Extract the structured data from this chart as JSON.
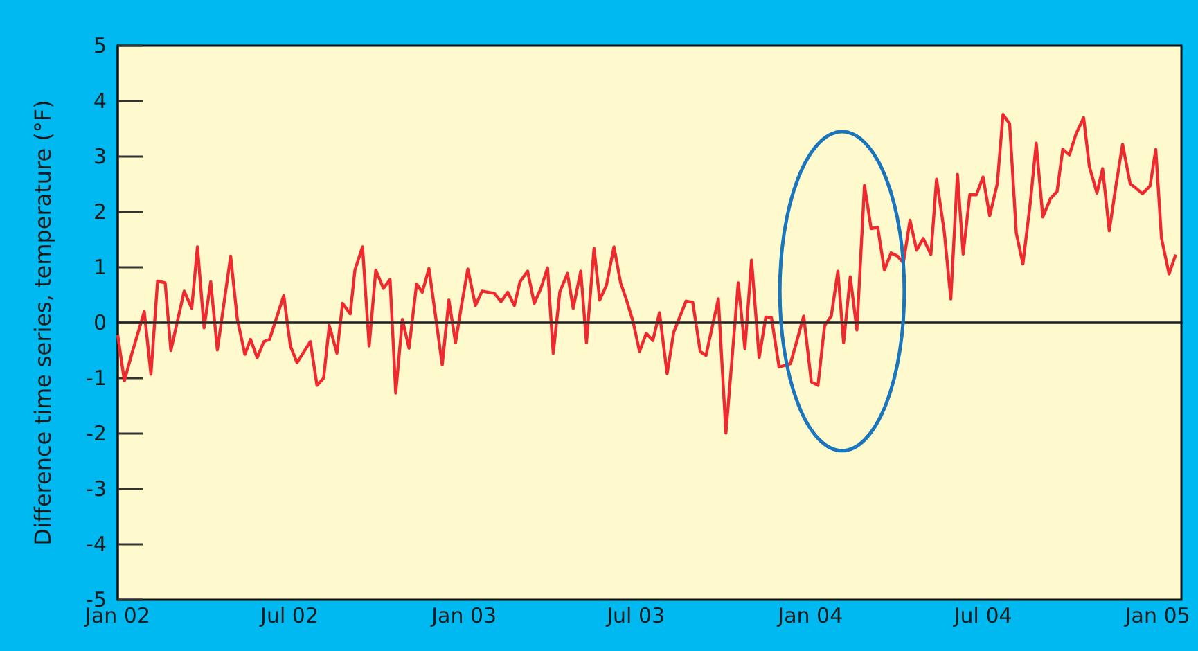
{
  "chart_data": {
    "type": "line",
    "ylabel": "Difference time series, temperature (°F)",
    "xlim": [
      "2002-01-01",
      "2005-01-26"
    ],
    "ylim": [
      -5,
      5
    ],
    "xticks": [
      {
        "value": "2002-01",
        "label": "Jan 02"
      },
      {
        "value": "2002-07",
        "label": "Jul 02"
      },
      {
        "value": "2003-01",
        "label": "Jan 03"
      },
      {
        "value": "2003-07",
        "label": "Jul 03"
      },
      {
        "value": "2004-01",
        "label": "Jan 04"
      },
      {
        "value": "2004-07",
        "label": "Jul 04"
      },
      {
        "value": "2005-01",
        "label": "Jan 05"
      }
    ],
    "yticks": [
      -5,
      -4,
      -3,
      -2,
      -1,
      0,
      1,
      2,
      3,
      4,
      5
    ],
    "grid": false,
    "marker": "none",
    "line_style": "solid",
    "ref_lines": [
      {
        "axis": "y",
        "value": 0,
        "color": "#222222"
      }
    ],
    "series": [
      {
        "color": "#ee2a2f",
        "x": [
          "2002-01-01",
          "2002-01-08",
          "2002-01-16",
          "2002-01-29",
          "2002-02-05",
          "2002-02-12",
          "2002-02-20",
          "2002-02-26",
          "2002-03-12",
          "2002-03-20",
          "2002-03-26",
          "2002-04-02",
          "2002-04-09",
          "2002-04-16",
          "2002-04-30",
          "2002-05-07",
          "2002-05-15",
          "2002-05-21",
          "2002-05-28",
          "2002-06-04",
          "2002-06-10",
          "2002-06-25",
          "2002-07-02",
          "2002-07-09",
          "2002-07-23",
          "2002-07-30",
          "2002-08-06",
          "2002-08-12",
          "2002-08-20",
          "2002-08-26",
          "2002-09-03",
          "2002-09-08",
          "2002-09-16",
          "2002-09-23",
          "2002-09-30",
          "2002-10-08",
          "2002-10-15",
          "2002-10-21",
          "2002-10-28",
          "2002-11-04",
          "2002-11-12",
          "2002-11-18",
          "2002-11-25",
          "2002-12-01",
          "2002-12-09",
          "2002-12-16",
          "2002-12-23",
          "2002-12-29",
          "2003-01-05",
          "2003-01-13",
          "2003-01-20",
          "2003-02-02",
          "2003-02-09",
          "2003-02-16",
          "2003-02-23",
          "2003-03-01",
          "2003-03-09",
          "2003-03-16",
          "2003-03-23",
          "2003-03-30",
          "2003-04-05",
          "2003-04-12",
          "2003-04-20",
          "2003-04-26",
          "2003-05-04",
          "2003-05-10",
          "2003-05-18",
          "2003-05-24",
          "2003-05-31",
          "2003-06-08",
          "2003-06-15",
          "2003-06-21",
          "2003-06-28",
          "2003-07-05",
          "2003-07-12",
          "2003-07-19",
          "2003-07-26",
          "2003-08-03",
          "2003-08-10",
          "2003-08-23",
          "2003-08-30",
          "2003-09-07",
          "2003-09-13",
          "2003-09-26",
          "2003-10-04",
          "2003-10-17",
          "2003-10-24",
          "2003-10-31",
          "2003-11-08",
          "2003-11-15",
          "2003-11-21",
          "2003-11-29",
          "2003-12-11",
          "2003-12-25",
          "2004-01-02",
          "2004-01-09",
          "2004-01-16",
          "2004-01-23",
          "2004-01-30",
          "2004-02-05",
          "2004-02-12",
          "2004-02-19",
          "2004-02-27",
          "2004-03-05",
          "2004-03-12",
          "2004-03-19",
          "2004-03-26",
          "2004-04-02",
          "2004-04-08",
          "2004-04-15",
          "2004-04-22",
          "2004-04-29",
          "2004-05-07",
          "2004-05-13",
          "2004-05-21",
          "2004-05-28",
          "2004-06-04",
          "2004-06-10",
          "2004-06-17",
          "2004-06-24",
          "2004-07-01",
          "2004-07-08",
          "2004-07-16",
          "2004-07-22",
          "2004-07-29",
          "2004-08-05",
          "2004-08-12",
          "2004-08-20",
          "2004-08-26",
          "2004-09-02",
          "2004-09-10",
          "2004-09-17",
          "2004-09-23",
          "2004-09-30",
          "2004-10-07",
          "2004-10-15",
          "2004-10-21",
          "2004-10-29",
          "2004-11-04",
          "2004-11-11",
          "2004-11-18",
          "2004-11-25",
          "2004-12-03",
          "2004-12-09",
          "2004-12-16",
          "2004-12-24",
          "2004-12-30",
          "2005-01-05",
          "2005-01-13",
          "2005-01-20"
        ],
        "values": [
          -0.22,
          -1.05,
          -0.55,
          0.2,
          -0.93,
          0.75,
          0.72,
          -0.5,
          0.57,
          0.26,
          1.37,
          -0.09,
          0.74,
          -0.49,
          1.2,
          0.07,
          -0.57,
          -0.3,
          -0.63,
          -0.34,
          -0.3,
          0.49,
          -0.42,
          -0.72,
          -0.34,
          -1.13,
          -1.0,
          -0.05,
          -0.55,
          0.35,
          0.16,
          0.95,
          1.37,
          -0.42,
          0.95,
          0.62,
          0.78,
          -1.27,
          0.06,
          -0.46,
          0.7,
          0.55,
          0.98,
          0.24,
          -0.76,
          0.41,
          -0.36,
          0.28,
          0.97,
          0.31,
          0.57,
          0.53,
          0.38,
          0.55,
          0.31,
          0.74,
          0.93,
          0.35,
          0.62,
          0.99,
          -0.55,
          0.56,
          0.89,
          0.26,
          0.93,
          -0.36,
          1.34,
          0.41,
          0.67,
          1.37,
          0.72,
          0.42,
          0.03,
          -0.52,
          -0.19,
          -0.32,
          0.18,
          -0.92,
          -0.17,
          0.39,
          0.37,
          -0.52,
          -0.59,
          0.43,
          -1.99,
          0.72,
          -0.47,
          1.13,
          -0.63,
          0.1,
          0.09,
          -0.8,
          -0.74,
          0.12,
          -1.07,
          -1.13,
          -0.05,
          0.12,
          0.93,
          -0.36,
          0.83,
          -0.13,
          2.48,
          1.7,
          1.72,
          0.95,
          1.26,
          1.2,
          1.08,
          1.85,
          1.31,
          1.52,
          1.23,
          2.59,
          1.66,
          0.43,
          2.68,
          1.24,
          2.31,
          2.31,
          2.63,
          1.93,
          2.51,
          3.76,
          3.59,
          1.62,
          1.06,
          2.2,
          3.24,
          1.91,
          2.24,
          2.37,
          3.13,
          3.03,
          3.41,
          3.7,
          2.82,
          2.34,
          2.78,
          1.66,
          2.47,
          3.22,
          2.51,
          2.43,
          2.33,
          2.47,
          3.13,
          1.53,
          0.88,
          1.23
        ]
      }
    ]
  }
}
